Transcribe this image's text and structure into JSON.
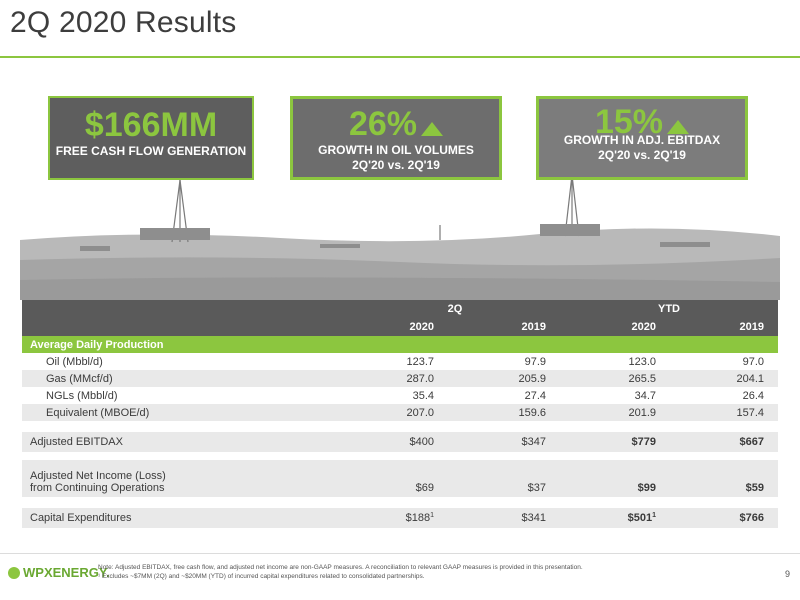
{
  "title": "2Q 2020 Results",
  "kpis": [
    {
      "big": "$166MM",
      "sub1": "FREE CASH FLOW GENERATION",
      "sub2": ""
    },
    {
      "big": "26%",
      "sub1": "GROWTH IN OIL VOLUMES",
      "sub2": "2Q'20 vs. 2Q'19"
    },
    {
      "big": "15%",
      "sub1": "GROWTH IN ADJ. EBITDAX",
      "sub2": "2Q'20 vs. 2Q'19"
    }
  ],
  "table": {
    "group_headers": [
      "2Q",
      "YTD"
    ],
    "year_headers": [
      "2020",
      "2019",
      "2020",
      "2019"
    ],
    "section": "Average Daily Production",
    "rows": [
      {
        "label": "Oil (Mbbl/d)",
        "values": [
          "123.7",
          "97.9",
          "123.0",
          "97.0"
        ]
      },
      {
        "label": "Gas (MMcf/d)",
        "values": [
          "287.0",
          "205.9",
          "265.5",
          "204.1"
        ]
      },
      {
        "label": "NGLs (Mbbl/d)",
        "values": [
          "35.4",
          "27.4",
          "34.7",
          "26.4"
        ]
      },
      {
        "label": "Equivalent (MBOE/d)",
        "values": [
          "207.0",
          "159.6",
          "201.9",
          "157.4"
        ]
      }
    ],
    "ebitdax": {
      "label": "Adjusted EBITDAX",
      "values": [
        "$400",
        "$347",
        "$779",
        "$667"
      ]
    },
    "net_income": {
      "label1": "Adjusted Net Income (Loss)",
      "label2": "from Continuing Operations",
      "values": [
        "$69",
        "$37",
        "$99",
        "$59"
      ]
    },
    "capex": {
      "label": "Capital Expenditures",
      "values": [
        "$188",
        "$341",
        "$501",
        "$766"
      ],
      "footnote_marker": "1"
    }
  },
  "footer": {
    "logo": "WPXENERGY.",
    "note1": "Note: Adjusted EBITDAX, free cash flow, and adjusted net income are non-GAAP measures. A reconciliation to relevant GAAP measures is provided in this presentation.",
    "note2": "¹ Excludes ~$7MM (2Q) and ~$20MM (YTD) of incurred capital expenditures related to consolidated partnerships.",
    "page": "9"
  }
}
